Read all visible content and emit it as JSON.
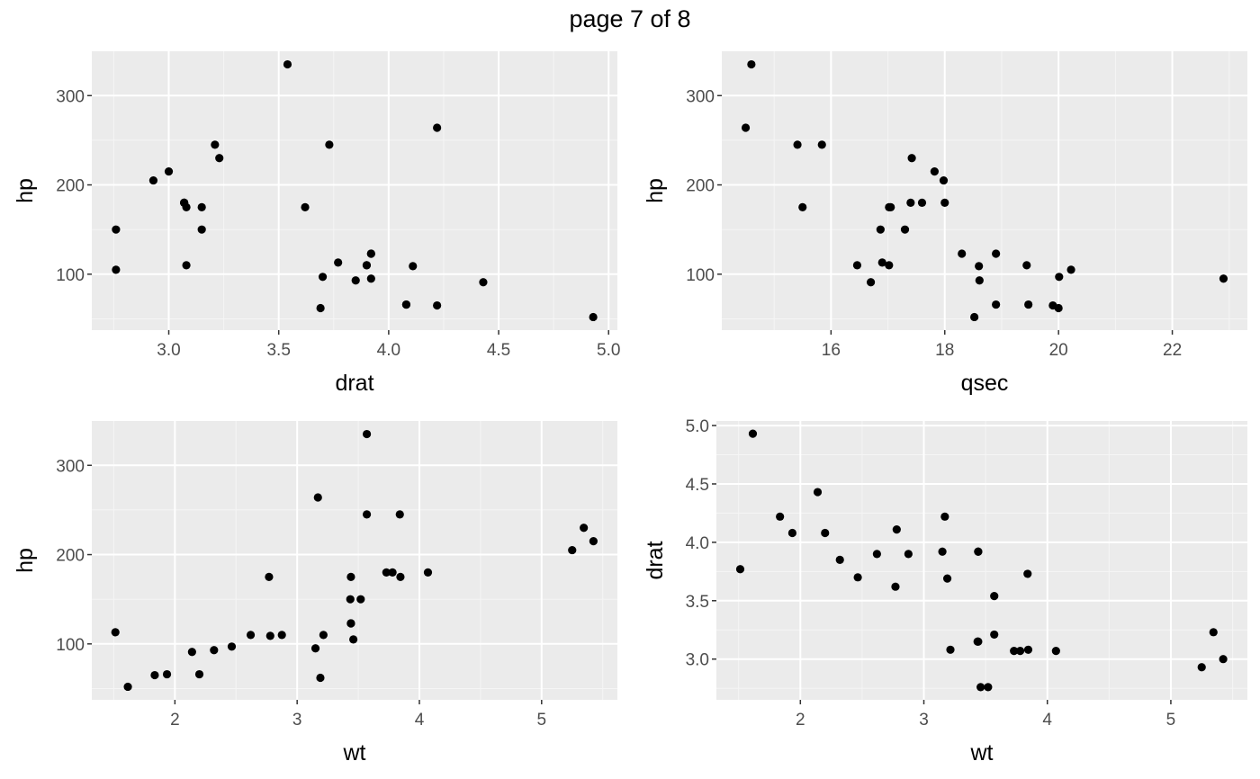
{
  "page_title": "page 7 of 8",
  "theme": {
    "panel_background": "#ebebeb",
    "major_grid": "#ffffff",
    "minor_grid": "#f5f5f5",
    "tick_label_color": "#4d4d4d",
    "tick_color": "#333333",
    "point_color": "#000000"
  },
  "chart_data": [
    {
      "type": "scatter",
      "xlabel": "drat",
      "ylabel": "hp",
      "xticks": [
        3.0,
        3.5,
        4.0,
        4.5,
        5.0
      ],
      "xtick_labels": [
        "3.0",
        "3.5",
        "4.0",
        "4.5",
        "5.0"
      ],
      "yticks": [
        100,
        200,
        300
      ],
      "ytick_labels": [
        "100",
        "200",
        "300"
      ],
      "xlim": [
        2.65,
        5.04
      ],
      "ylim": [
        37.35,
        349.65
      ],
      "grid": true,
      "points": [
        [
          3.9,
          110
        ],
        [
          3.9,
          110
        ],
        [
          3.85,
          93
        ],
        [
          3.08,
          110
        ],
        [
          3.15,
          175
        ],
        [
          2.76,
          105
        ],
        [
          3.21,
          245
        ],
        [
          3.69,
          62
        ],
        [
          3.92,
          95
        ],
        [
          3.92,
          123
        ],
        [
          3.92,
          123
        ],
        [
          3.07,
          180
        ],
        [
          3.07,
          180
        ],
        [
          3.07,
          180
        ],
        [
          2.93,
          205
        ],
        [
          3.0,
          215
        ],
        [
          3.23,
          230
        ],
        [
          4.08,
          66
        ],
        [
          4.93,
          52
        ],
        [
          4.22,
          65
        ],
        [
          3.7,
          97
        ],
        [
          2.76,
          150
        ],
        [
          3.15,
          150
        ],
        [
          3.73,
          245
        ],
        [
          3.08,
          175
        ],
        [
          4.08,
          66
        ],
        [
          4.43,
          91
        ],
        [
          3.77,
          113
        ],
        [
          4.22,
          264
        ],
        [
          3.62,
          175
        ],
        [
          3.54,
          335
        ],
        [
          4.11,
          109
        ]
      ]
    },
    {
      "type": "scatter",
      "xlabel": "qsec",
      "ylabel": "hp",
      "xticks": [
        16,
        18,
        20,
        22
      ],
      "xtick_labels": [
        "16",
        "18",
        "20",
        "22"
      ],
      "yticks": [
        100,
        200,
        300
      ],
      "ytick_labels": [
        "100",
        "200",
        "300"
      ],
      "xlim": [
        14.08,
        23.32
      ],
      "ylim": [
        37.35,
        349.65
      ],
      "grid": true,
      "points": [
        [
          16.46,
          110
        ],
        [
          17.02,
          110
        ],
        [
          18.61,
          93
        ],
        [
          19.44,
          110
        ],
        [
          17.02,
          175
        ],
        [
          20.22,
          105
        ],
        [
          15.84,
          245
        ],
        [
          20.0,
          62
        ],
        [
          22.9,
          95
        ],
        [
          18.3,
          123
        ],
        [
          18.9,
          123
        ],
        [
          17.4,
          180
        ],
        [
          17.6,
          180
        ],
        [
          18.0,
          180
        ],
        [
          17.98,
          205
        ],
        [
          17.82,
          215
        ],
        [
          17.42,
          230
        ],
        [
          19.47,
          66
        ],
        [
          18.52,
          52
        ],
        [
          19.9,
          65
        ],
        [
          20.01,
          97
        ],
        [
          16.87,
          150
        ],
        [
          17.3,
          150
        ],
        [
          15.41,
          245
        ],
        [
          17.05,
          175
        ],
        [
          18.9,
          66
        ],
        [
          16.7,
          91
        ],
        [
          16.9,
          113
        ],
        [
          14.5,
          264
        ],
        [
          15.5,
          175
        ],
        [
          14.6,
          335
        ],
        [
          18.6,
          109
        ]
      ]
    },
    {
      "type": "scatter",
      "xlabel": "wt",
      "ylabel": "hp",
      "xticks": [
        2,
        3,
        4,
        5
      ],
      "xtick_labels": [
        "2",
        "3",
        "4",
        "5"
      ],
      "yticks": [
        100,
        200,
        300
      ],
      "ytick_labels": [
        "100",
        "200",
        "300"
      ],
      "xlim": [
        1.32,
        5.62
      ],
      "ylim": [
        37.35,
        349.65
      ],
      "grid": true,
      "points": [
        [
          2.62,
          110
        ],
        [
          2.875,
          110
        ],
        [
          2.32,
          93
        ],
        [
          3.215,
          110
        ],
        [
          3.44,
          175
        ],
        [
          3.46,
          105
        ],
        [
          3.57,
          245
        ],
        [
          3.19,
          62
        ],
        [
          3.15,
          95
        ],
        [
          3.44,
          123
        ],
        [
          3.44,
          123
        ],
        [
          4.07,
          180
        ],
        [
          3.73,
          180
        ],
        [
          3.78,
          180
        ],
        [
          5.25,
          205
        ],
        [
          5.424,
          215
        ],
        [
          5.345,
          230
        ],
        [
          2.2,
          66
        ],
        [
          1.615,
          52
        ],
        [
          1.835,
          65
        ],
        [
          2.465,
          97
        ],
        [
          3.52,
          150
        ],
        [
          3.435,
          150
        ],
        [
          3.84,
          245
        ],
        [
          3.845,
          175
        ],
        [
          1.935,
          66
        ],
        [
          2.14,
          91
        ],
        [
          1.513,
          113
        ],
        [
          3.17,
          264
        ],
        [
          2.77,
          175
        ],
        [
          3.57,
          335
        ],
        [
          2.78,
          109
        ]
      ]
    },
    {
      "type": "scatter",
      "xlabel": "wt",
      "ylabel": "drat",
      "xticks": [
        2,
        3,
        4,
        5
      ],
      "xtick_labels": [
        "2",
        "3",
        "4",
        "5"
      ],
      "yticks": [
        3.0,
        3.5,
        4.0,
        4.5,
        5.0
      ],
      "ytick_labels": [
        "3.0",
        "3.5",
        "4.0",
        "4.5",
        "5.0"
      ],
      "xlim": [
        1.32,
        5.62
      ],
      "ylim": [
        2.651,
        5.039
      ],
      "grid": true,
      "points": [
        [
          2.62,
          3.9
        ],
        [
          2.875,
          3.9
        ],
        [
          2.32,
          3.85
        ],
        [
          3.215,
          3.08
        ],
        [
          3.44,
          3.15
        ],
        [
          3.46,
          2.76
        ],
        [
          3.57,
          3.21
        ],
        [
          3.19,
          3.69
        ],
        [
          3.15,
          3.92
        ],
        [
          3.44,
          3.92
        ],
        [
          3.44,
          3.92
        ],
        [
          4.07,
          3.07
        ],
        [
          3.73,
          3.07
        ],
        [
          3.78,
          3.07
        ],
        [
          5.25,
          2.93
        ],
        [
          5.424,
          3.0
        ],
        [
          5.345,
          3.23
        ],
        [
          2.2,
          4.08
        ],
        [
          1.615,
          4.93
        ],
        [
          1.835,
          4.22
        ],
        [
          2.465,
          3.7
        ],
        [
          3.52,
          2.76
        ],
        [
          3.435,
          3.15
        ],
        [
          3.84,
          3.73
        ],
        [
          3.845,
          3.08
        ],
        [
          1.935,
          4.08
        ],
        [
          2.14,
          4.43
        ],
        [
          1.513,
          3.77
        ],
        [
          3.17,
          4.22
        ],
        [
          2.77,
          3.62
        ],
        [
          3.57,
          3.54
        ],
        [
          2.78,
          4.11
        ]
      ]
    }
  ]
}
